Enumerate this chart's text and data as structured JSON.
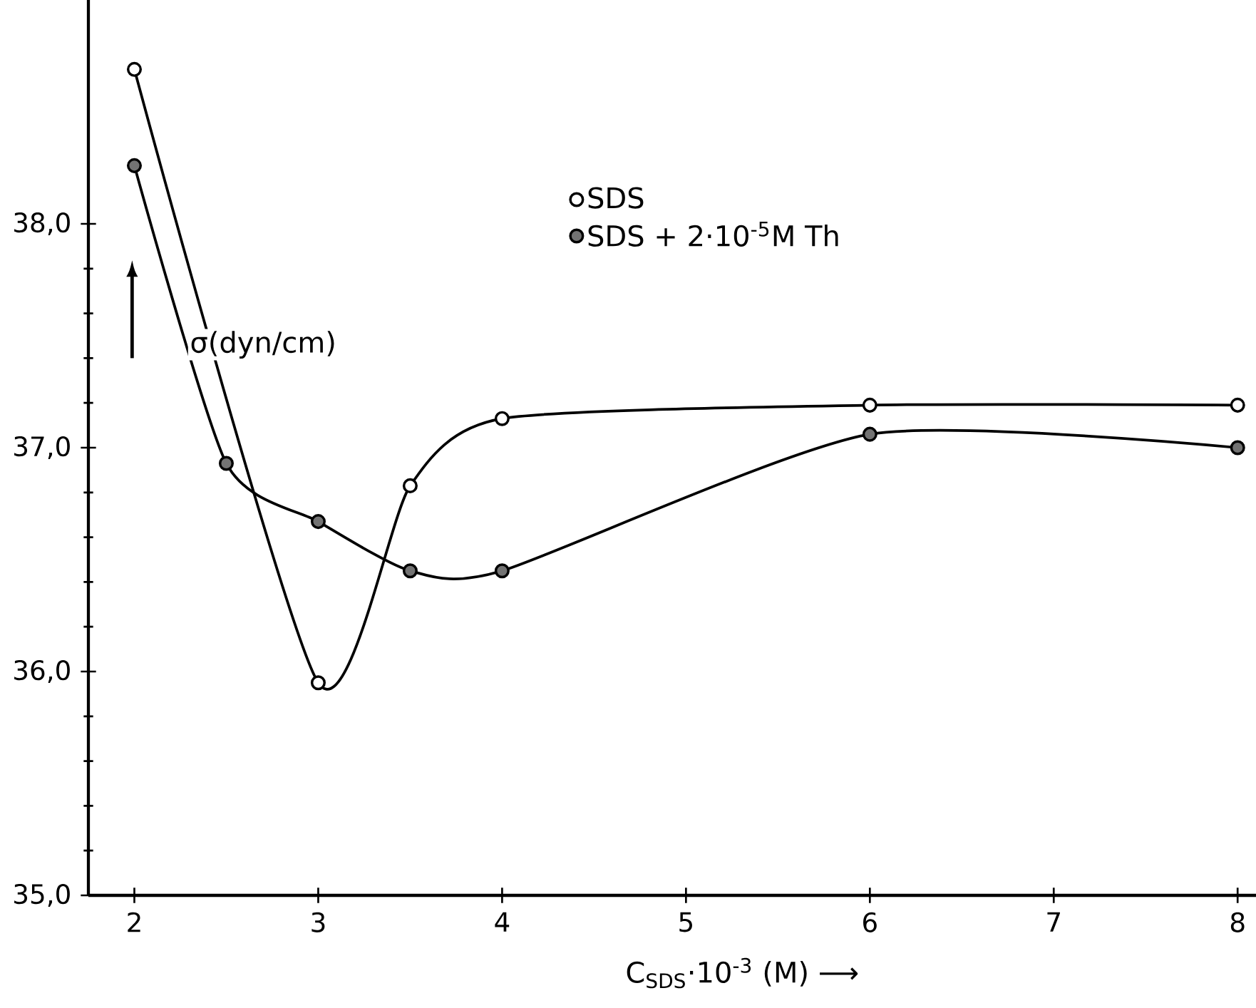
{
  "chart_data": {
    "type": "line",
    "xlabel": "C$_{SDS}$·10$^{-3}$ (M) ⟶",
    "ylabel": "σ(dyn/cm)",
    "xlim": [
      1.75,
      8.1
    ],
    "ylim": [
      35.0,
      39.0
    ],
    "xticks": [
      2,
      3,
      4,
      5,
      6,
      7,
      8
    ],
    "yticks": [
      {
        "value": 35,
        "label": "35,0"
      },
      {
        "value": 36,
        "label": "36,0"
      },
      {
        "value": 37,
        "label": "37,0"
      },
      {
        "value": 38,
        "label": "38,0"
      }
    ],
    "grid": false,
    "legend": "top",
    "marker": "circle",
    "line_style": "solid",
    "series": [
      {
        "name": "SDS",
        "color": "#000000",
        "x": [
          2,
          3,
          3.5,
          4,
          6,
          8
        ],
        "values": [
          38.69,
          35.95,
          36.83,
          37.13,
          37.19,
          37.19
        ]
      },
      {
        "name": "SDS + 2·10$^{-5}$M Th",
        "color": "#000000",
        "x": [
          2,
          2.5,
          3,
          3.5,
          4,
          6,
          8
        ],
        "values": [
          38.26,
          36.93,
          36.67,
          36.45,
          36.45,
          37.06,
          37.0
        ]
      }
    ]
  }
}
